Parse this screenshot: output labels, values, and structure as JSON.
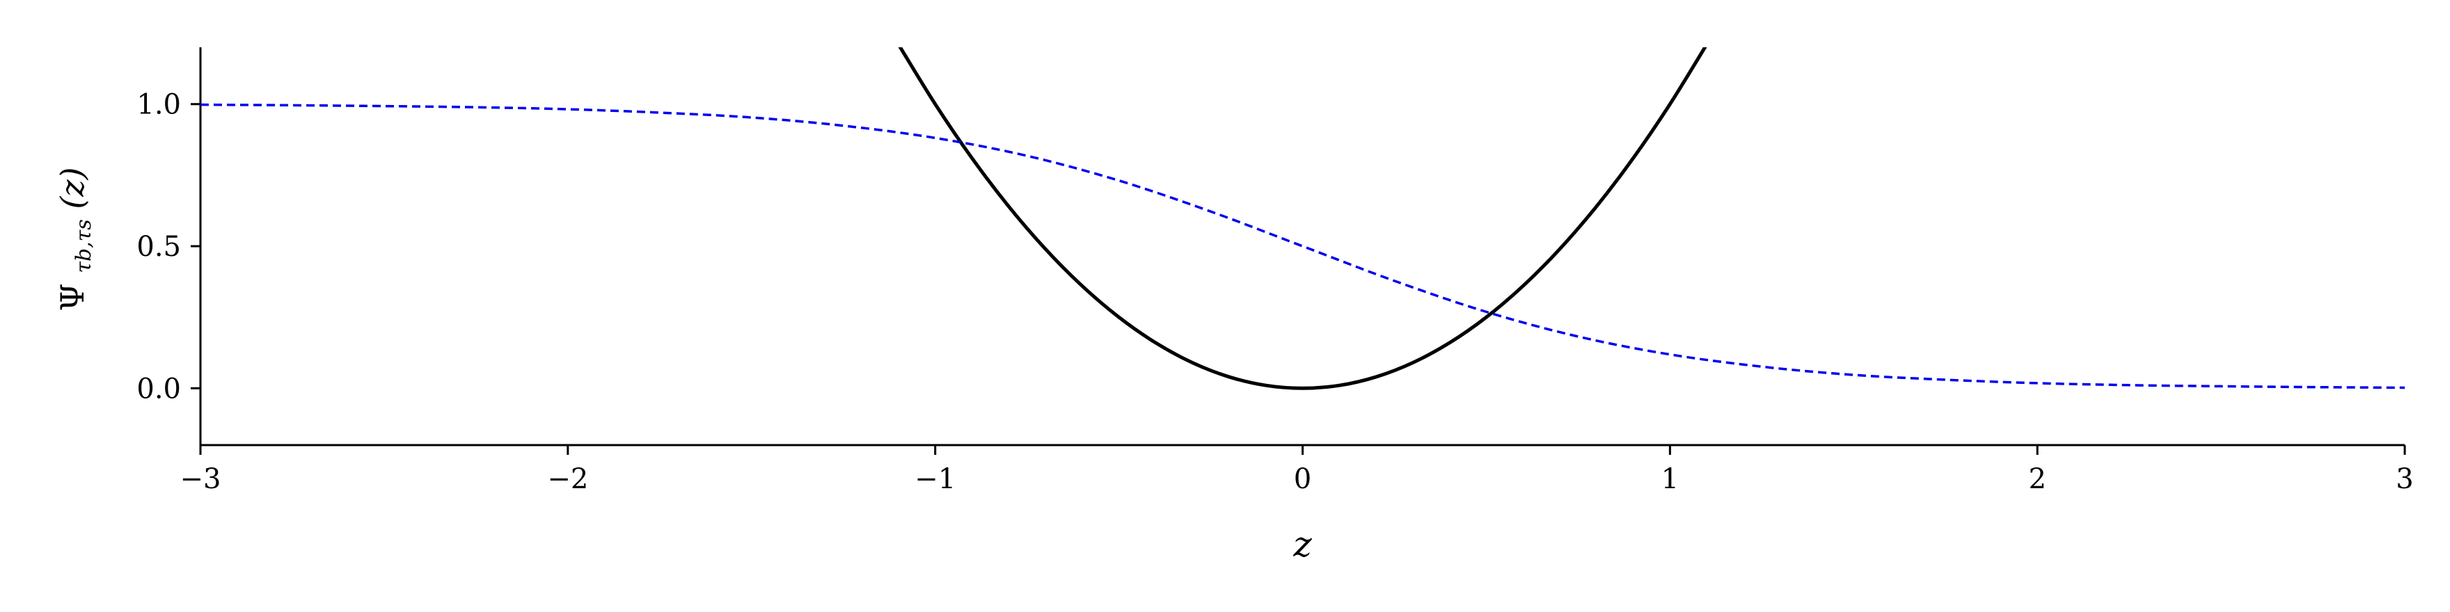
{
  "chart_data": {
    "type": "line",
    "xlabel": "z",
    "ylabel_main": "Ψ",
    "ylabel_sub": "τb,τs",
    "ylabel_arg": "(z)",
    "xlim": [
      -3,
      3
    ],
    "ylim": [
      -0.2,
      1.2
    ],
    "xticks": [
      -3,
      -2,
      -1,
      0,
      1,
      2,
      3
    ],
    "xtick_labels": [
      "−3",
      "−2",
      "−1",
      "0",
      "1",
      "2",
      "3"
    ],
    "yticks": [
      0.0,
      0.5,
      1.0
    ],
    "ytick_labels": [
      "0.0",
      "0.5",
      "1.0"
    ],
    "grid": false,
    "series": [
      {
        "style": "solid",
        "color": "#000000",
        "x": [
          -1.1,
          -1.0,
          -0.9,
          -0.8,
          -0.7,
          -0.6,
          -0.5,
          -0.4,
          -0.3,
          -0.2,
          -0.1,
          0.0,
          0.1,
          0.2,
          0.3,
          0.4,
          0.5,
          0.6,
          0.7,
          0.8,
          0.9,
          1.0,
          1.1
        ],
        "y": [
          1.21,
          1.0,
          0.81,
          0.64,
          0.49,
          0.36,
          0.25,
          0.16,
          0.09,
          0.04,
          0.01,
          0.0,
          0.01,
          0.04,
          0.09,
          0.16,
          0.25,
          0.36,
          0.49,
          0.64,
          0.81,
          1.0,
          1.21
        ]
      },
      {
        "style": "dashed",
        "color": "#0000ee",
        "x": [
          -3.0,
          -2.75,
          -2.5,
          -2.25,
          -2.0,
          -1.75,
          -1.5,
          -1.25,
          -1.0,
          -0.75,
          -0.5,
          -0.25,
          0.0,
          0.25,
          0.5,
          0.75,
          1.0,
          1.25,
          1.5,
          1.75,
          2.0,
          2.25,
          2.5,
          2.75,
          3.0
        ],
        "y": [
          0.998,
          0.996,
          0.993,
          0.989,
          0.982,
          0.97,
          0.953,
          0.924,
          0.881,
          0.818,
          0.731,
          0.622,
          0.5,
          0.378,
          0.269,
          0.182,
          0.119,
          0.076,
          0.047,
          0.03,
          0.018,
          0.011,
          0.007,
          0.004,
          0.002
        ]
      }
    ]
  }
}
